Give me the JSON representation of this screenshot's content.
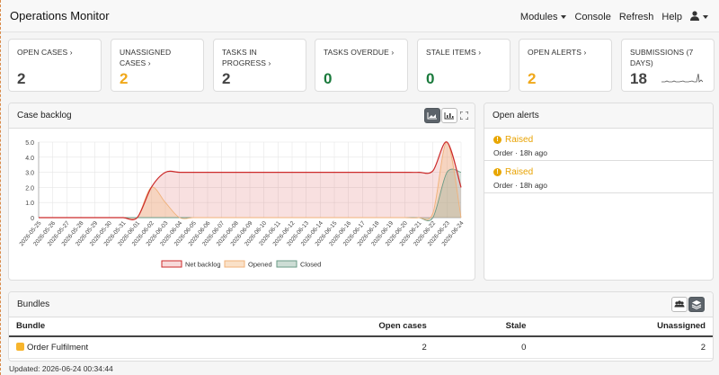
{
  "app": {
    "title": "Operations Monitor"
  },
  "nav": {
    "modules": "Modules",
    "console": "Console",
    "refresh": "Refresh",
    "help": "Help"
  },
  "cards": [
    {
      "label": "OPEN CASES ›",
      "value": "2",
      "color": "#444444"
    },
    {
      "label": "UNASSIGNED CASES ›",
      "value": "2",
      "color": "#f0a81a"
    },
    {
      "label": "TASKS IN PROGRESS ›",
      "value": "2",
      "color": "#444444"
    },
    {
      "label": "TASKS OVERDUE ›",
      "value": "0",
      "color": "#1a7a3c"
    },
    {
      "label": "STALE ITEMS ›",
      "value": "0",
      "color": "#1a7a3c"
    },
    {
      "label": "OPEN ALERTS ›",
      "value": "2",
      "color": "#f0a81a"
    },
    {
      "label": "SUBMISSIONS (7 DAYS)",
      "value": "18",
      "color": "#444444"
    }
  ],
  "backlog": {
    "title": "Case backlog"
  },
  "chart_data": {
    "type": "area",
    "x": [
      "2026-05-25",
      "2026-05-26",
      "2026-05-27",
      "2026-05-28",
      "2026-05-29",
      "2026-05-30",
      "2026-05-31",
      "2026-06-01",
      "2026-06-02",
      "2026-06-03",
      "2026-06-04",
      "2026-06-05",
      "2026-06-06",
      "2026-06-07",
      "2026-06-08",
      "2026-06-09",
      "2026-06-10",
      "2026-06-11",
      "2026-06-12",
      "2026-06-13",
      "2026-06-14",
      "2026-06-15",
      "2026-06-16",
      "2026-06-17",
      "2026-06-18",
      "2026-06-19",
      "2026-06-20",
      "2026-06-21",
      "2026-06-22",
      "2026-06-23",
      "2026-06-24"
    ],
    "series": [
      {
        "name": "Net backlog",
        "color": "#cc2a2a",
        "values": [
          0,
          0,
          0,
          0,
          0,
          0,
          0,
          0,
          2,
          3,
          3,
          3,
          3,
          3,
          3,
          3,
          3,
          3,
          3,
          3,
          3,
          3,
          3,
          3,
          3,
          3,
          3,
          3,
          3.1,
          5,
          2
        ]
      },
      {
        "name": "Opened",
        "color": "#f0b27a",
        "values": [
          0,
          0,
          0,
          0,
          0,
          0,
          0,
          0,
          2,
          1,
          0,
          0,
          0,
          0,
          0,
          0,
          0,
          0,
          0,
          0,
          0,
          0,
          0,
          0,
          0,
          0,
          0,
          0,
          0.3,
          5,
          0
        ]
      },
      {
        "name": "Closed",
        "color": "#6a9a86",
        "values": [
          0,
          0,
          0,
          0,
          0,
          0,
          0,
          0,
          0,
          0,
          0,
          0,
          0,
          0,
          0,
          0,
          0,
          0,
          0,
          0,
          0,
          0,
          0,
          0,
          0,
          0,
          0,
          0,
          0,
          3,
          3
        ]
      }
    ],
    "ylim": [
      0,
      5
    ],
    "yticks": [
      "0",
      "1.0",
      "2.0",
      "3.0",
      "4.0",
      "5.0"
    ],
    "grid": true,
    "legend": "bottom"
  },
  "alerts": {
    "title": "Open alerts",
    "items": [
      {
        "status": "Raised",
        "meta": "Order · 18h ago"
      },
      {
        "status": "Raised",
        "meta": "Order · 18h ago"
      }
    ]
  },
  "bundles": {
    "title": "Bundles",
    "headers": {
      "bundle": "Bundle",
      "open": "Open cases",
      "stale": "Stale",
      "unassigned": "Unassigned"
    },
    "rows": [
      {
        "name": "Order Fulfilment",
        "open": "2",
        "stale": "0",
        "unassigned": "2",
        "color": "#f7b52d"
      }
    ]
  },
  "footer": {
    "updated": "Updated: 2026-06-24 00:34:44"
  }
}
